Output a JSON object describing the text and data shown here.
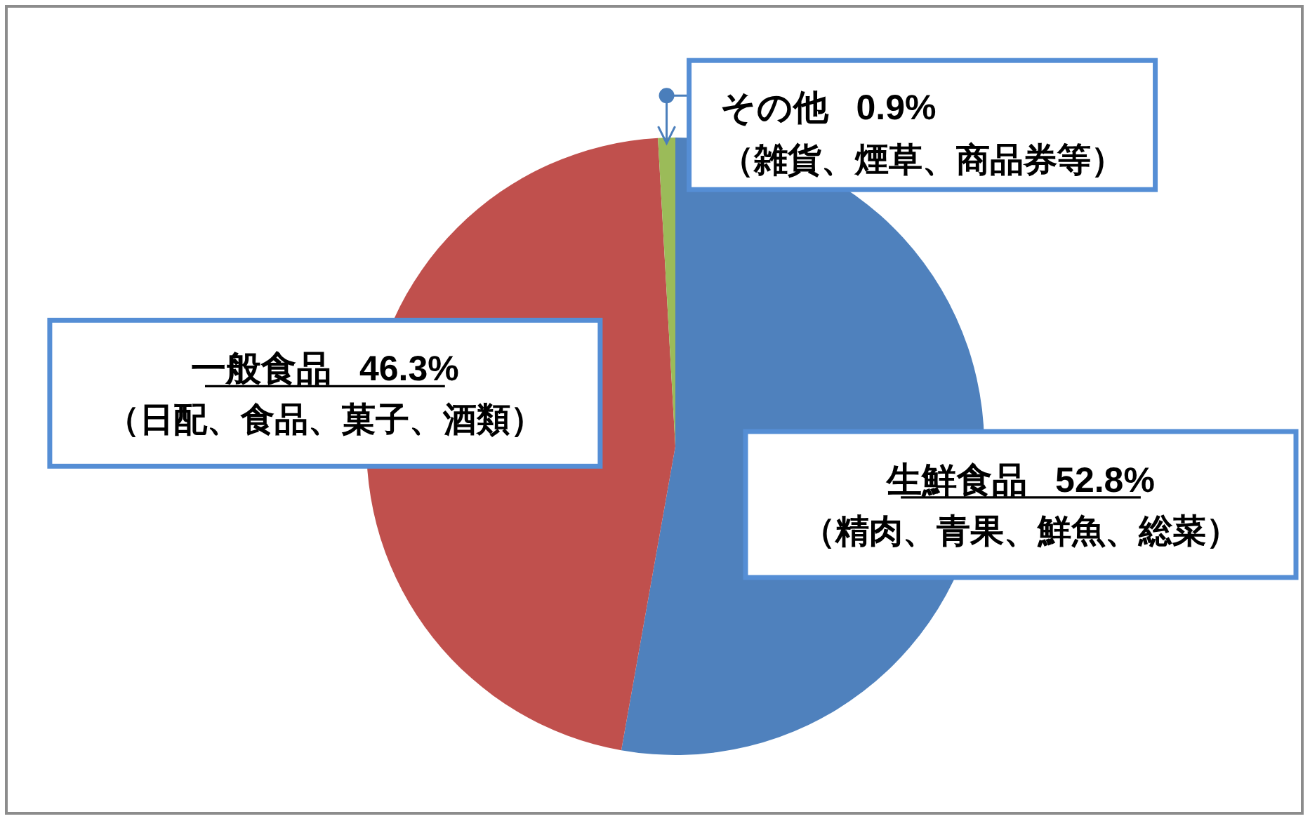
{
  "chart_data": {
    "type": "pie",
    "categories": [
      "生鮮食品",
      "一般食品",
      "その他"
    ],
    "values": [
      52.8,
      46.3,
      0.9
    ],
    "colors": [
      "#4f81bd",
      "#c0504d",
      "#9bbb59"
    ],
    "value_labels": [
      "52.8%",
      "46.3%",
      "0.9%"
    ],
    "annotations": [
      "（精肉、青果、鮮魚、総菜）",
      "（日配、食品、菓子、酒類）",
      "（雑貨、煙草、商品券等）"
    ]
  }
}
